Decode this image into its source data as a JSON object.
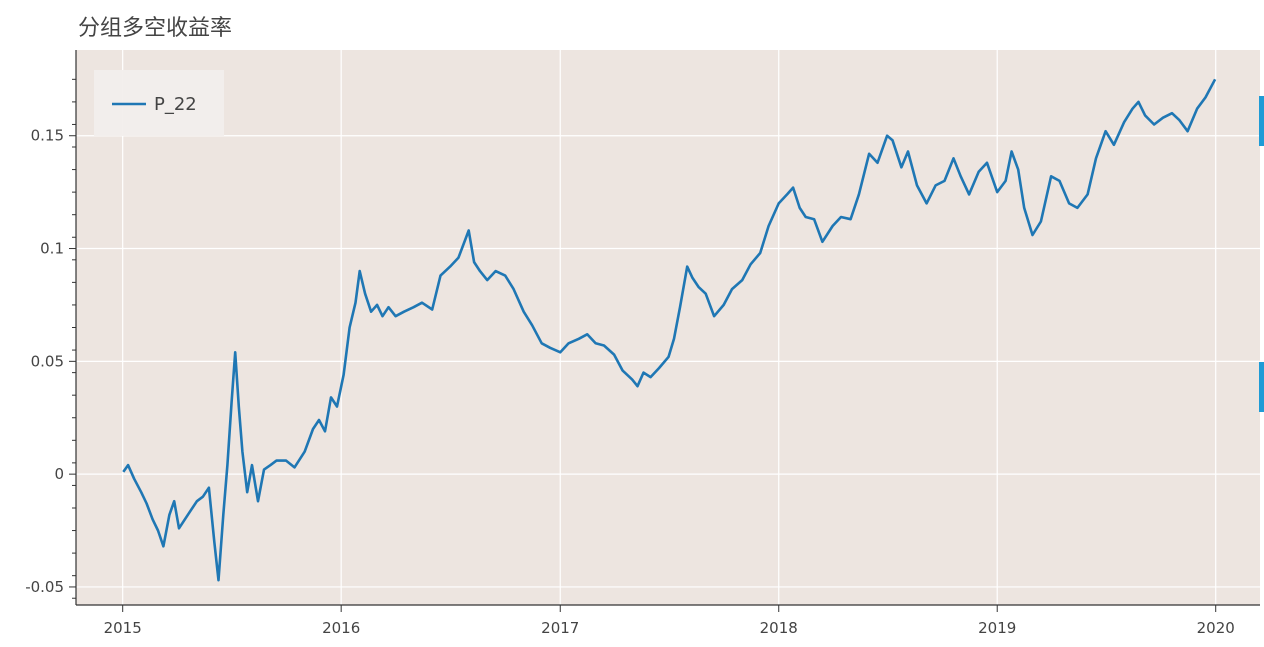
{
  "chart_data": {
    "type": "line",
    "title": "分组多空收益率",
    "xlabel": "",
    "ylabel": "",
    "x_range": [
      "2014-10-15",
      "2020-03-15"
    ],
    "ylim": [
      -0.058,
      0.188
    ],
    "x_tick_labels": [
      "2015",
      "2016",
      "2017",
      "2018",
      "2019",
      "2020"
    ],
    "x_tick_dates": [
      "2015-01-01",
      "2016-01-01",
      "2017-01-01",
      "2018-01-01",
      "2019-01-01",
      "2020-01-01"
    ],
    "y_ticks": [
      -0.05,
      0,
      0.05,
      0.1,
      0.15
    ],
    "y_tick_labels": [
      "-0.05",
      "0",
      "0.05",
      "0.1",
      "0.15"
    ],
    "grid": true,
    "legend": "top-left",
    "background": "#ede5e0",
    "series": [
      {
        "name": "P_22",
        "color": "#1f77b4",
        "points": [
          [
            "2015-01-02",
            0.001
          ],
          [
            "2015-01-10",
            0.004
          ],
          [
            "2015-01-20",
            -0.002
          ],
          [
            "2015-02-01",
            -0.008
          ],
          [
            "2015-02-10",
            -0.013
          ],
          [
            "2015-02-20",
            -0.02
          ],
          [
            "2015-03-01",
            -0.025
          ],
          [
            "2015-03-10",
            -0.032
          ],
          [
            "2015-03-20",
            -0.018
          ],
          [
            "2015-03-28",
            -0.012
          ],
          [
            "2015-04-05",
            -0.024
          ],
          [
            "2015-04-15",
            -0.02
          ],
          [
            "2015-04-25",
            -0.016
          ],
          [
            "2015-05-05",
            -0.012
          ],
          [
            "2015-05-15",
            -0.01
          ],
          [
            "2015-05-25",
            -0.006
          ],
          [
            "2015-06-03",
            -0.03
          ],
          [
            "2015-06-10",
            -0.047
          ],
          [
            "2015-06-18",
            -0.018
          ],
          [
            "2015-06-25",
            0.004
          ],
          [
            "2015-07-02",
            0.032
          ],
          [
            "2015-07-08",
            0.054
          ],
          [
            "2015-07-14",
            0.03
          ],
          [
            "2015-07-20",
            0.01
          ],
          [
            "2015-07-28",
            -0.008
          ],
          [
            "2015-08-05",
            0.004
          ],
          [
            "2015-08-15",
            -0.012
          ],
          [
            "2015-08-25",
            0.002
          ],
          [
            "2015-09-05",
            0.004
          ],
          [
            "2015-09-15",
            0.006
          ],
          [
            "2015-10-01",
            0.006
          ],
          [
            "2015-10-15",
            0.003
          ],
          [
            "2015-11-01",
            0.01
          ],
          [
            "2015-11-15",
            0.02
          ],
          [
            "2015-11-25",
            0.024
          ],
          [
            "2015-12-05",
            0.019
          ],
          [
            "2015-12-15",
            0.034
          ],
          [
            "2015-12-25",
            0.03
          ],
          [
            "2016-01-05",
            0.044
          ],
          [
            "2016-01-15",
            0.065
          ],
          [
            "2016-01-25",
            0.076
          ],
          [
            "2016-02-01",
            0.09
          ],
          [
            "2016-02-10",
            0.08
          ],
          [
            "2016-02-20",
            0.072
          ],
          [
            "2016-03-01",
            0.075
          ],
          [
            "2016-03-10",
            0.07
          ],
          [
            "2016-03-20",
            0.074
          ],
          [
            "2016-04-01",
            0.07
          ],
          [
            "2016-04-15",
            0.072
          ],
          [
            "2016-05-01",
            0.074
          ],
          [
            "2016-05-15",
            0.076
          ],
          [
            "2016-06-01",
            0.073
          ],
          [
            "2016-06-15",
            0.088
          ],
          [
            "2016-07-01",
            0.092
          ],
          [
            "2016-07-15",
            0.096
          ],
          [
            "2016-08-01",
            0.108
          ],
          [
            "2016-08-10",
            0.094
          ],
          [
            "2016-08-20",
            0.09
          ],
          [
            "2016-09-01",
            0.086
          ],
          [
            "2016-09-15",
            0.09
          ],
          [
            "2016-10-01",
            0.088
          ],
          [
            "2016-10-15",
            0.082
          ],
          [
            "2016-11-01",
            0.072
          ],
          [
            "2016-11-15",
            0.066
          ],
          [
            "2016-12-01",
            0.058
          ],
          [
            "2016-12-15",
            0.056
          ],
          [
            "2017-01-01",
            0.054
          ],
          [
            "2017-01-15",
            0.058
          ],
          [
            "2017-02-01",
            0.06
          ],
          [
            "2017-02-15",
            0.062
          ],
          [
            "2017-03-01",
            0.058
          ],
          [
            "2017-03-15",
            0.057
          ],
          [
            "2017-04-01",
            0.053
          ],
          [
            "2017-04-15",
            0.046
          ],
          [
            "2017-05-01",
            0.042
          ],
          [
            "2017-05-10",
            0.039
          ],
          [
            "2017-05-20",
            0.045
          ],
          [
            "2017-06-01",
            0.043
          ],
          [
            "2017-06-15",
            0.047
          ],
          [
            "2017-07-01",
            0.052
          ],
          [
            "2017-07-10",
            0.06
          ],
          [
            "2017-07-20",
            0.074
          ],
          [
            "2017-08-01",
            0.092
          ],
          [
            "2017-08-10",
            0.087
          ],
          [
            "2017-08-20",
            0.083
          ],
          [
            "2017-09-01",
            0.08
          ],
          [
            "2017-09-15",
            0.07
          ],
          [
            "2017-10-01",
            0.075
          ],
          [
            "2017-10-15",
            0.082
          ],
          [
            "2017-11-01",
            0.086
          ],
          [
            "2017-11-15",
            0.093
          ],
          [
            "2017-12-01",
            0.098
          ],
          [
            "2017-12-15",
            0.11
          ],
          [
            "2018-01-01",
            0.12
          ],
          [
            "2018-01-15",
            0.124
          ],
          [
            "2018-01-25",
            0.127
          ],
          [
            "2018-02-05",
            0.118
          ],
          [
            "2018-02-15",
            0.114
          ],
          [
            "2018-03-01",
            0.113
          ],
          [
            "2018-03-15",
            0.103
          ],
          [
            "2018-04-01",
            0.11
          ],
          [
            "2018-04-15",
            0.114
          ],
          [
            "2018-05-01",
            0.113
          ],
          [
            "2018-05-15",
            0.124
          ],
          [
            "2018-06-01",
            0.142
          ],
          [
            "2018-06-15",
            0.138
          ],
          [
            "2018-07-01",
            0.15
          ],
          [
            "2018-07-10",
            0.148
          ],
          [
            "2018-07-25",
            0.136
          ],
          [
            "2018-08-05",
            0.143
          ],
          [
            "2018-08-20",
            0.128
          ],
          [
            "2018-09-05",
            0.12
          ],
          [
            "2018-09-20",
            0.128
          ],
          [
            "2018-10-05",
            0.13
          ],
          [
            "2018-10-20",
            0.14
          ],
          [
            "2018-11-01",
            0.132
          ],
          [
            "2018-11-15",
            0.124
          ],
          [
            "2018-12-01",
            0.134
          ],
          [
            "2018-12-15",
            0.138
          ],
          [
            "2019-01-01",
            0.125
          ],
          [
            "2019-01-15",
            0.13
          ],
          [
            "2019-01-25",
            0.143
          ],
          [
            "2019-02-05",
            0.135
          ],
          [
            "2019-02-15",
            0.118
          ],
          [
            "2019-03-01",
            0.106
          ],
          [
            "2019-03-15",
            0.112
          ],
          [
            "2019-04-01",
            0.132
          ],
          [
            "2019-04-15",
            0.13
          ],
          [
            "2019-05-01",
            0.12
          ],
          [
            "2019-05-15",
            0.118
          ],
          [
            "2019-06-01",
            0.124
          ],
          [
            "2019-06-15",
            0.14
          ],
          [
            "2019-07-01",
            0.152
          ],
          [
            "2019-07-15",
            0.146
          ],
          [
            "2019-08-01",
            0.156
          ],
          [
            "2019-08-15",
            0.162
          ],
          [
            "2019-08-25",
            0.165
          ],
          [
            "2019-09-05",
            0.159
          ],
          [
            "2019-09-20",
            0.155
          ],
          [
            "2019-10-05",
            0.158
          ],
          [
            "2019-10-20",
            0.16
          ],
          [
            "2019-11-01",
            0.157
          ],
          [
            "2019-11-15",
            0.152
          ],
          [
            "2019-12-01",
            0.162
          ],
          [
            "2019-12-15",
            0.167
          ],
          [
            "2019-12-31",
            0.175
          ]
        ]
      }
    ]
  }
}
